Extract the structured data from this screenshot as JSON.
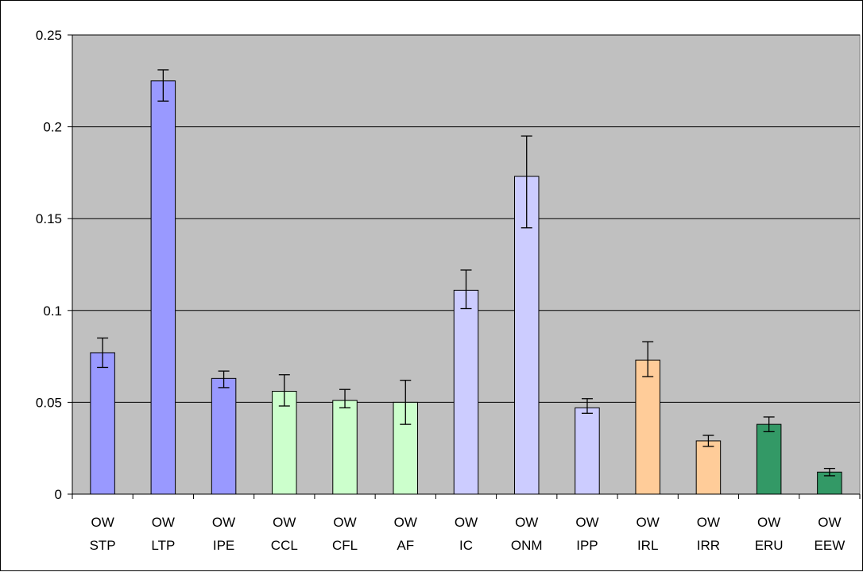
{
  "chart_data": {
    "type": "bar",
    "title": "",
    "xlabel": "",
    "ylabel": "",
    "ylim": [
      0,
      0.25
    ],
    "yticks": [
      0,
      0.05,
      0.1,
      0.15,
      0.2,
      0.25
    ],
    "ytick_labels": [
      "0",
      "0.05",
      "0.1",
      "0.15",
      "0.2",
      "0.25"
    ],
    "grid": true,
    "plot_background": "#c0c0c0",
    "categories": [
      [
        "OW",
        "STP"
      ],
      [
        "OW",
        "LTP"
      ],
      [
        "OW",
        "IPE"
      ],
      [
        "OW",
        "CCL"
      ],
      [
        "OW",
        "CFL"
      ],
      [
        "OW",
        "AF"
      ],
      [
        "OW",
        "IC"
      ],
      [
        "OW",
        "ONM"
      ],
      [
        "OW",
        "IPP"
      ],
      [
        "OW",
        "IRL"
      ],
      [
        "OW",
        "IRR"
      ],
      [
        "OW",
        "ERU"
      ],
      [
        "OW",
        "EEW"
      ]
    ],
    "values": [
      0.077,
      0.225,
      0.063,
      0.056,
      0.051,
      0.05,
      0.111,
      0.173,
      0.047,
      0.073,
      0.029,
      0.038,
      0.012
    ],
    "error_low": [
      0.069,
      0.214,
      0.058,
      0.048,
      0.047,
      0.038,
      0.101,
      0.145,
      0.044,
      0.064,
      0.026,
      0.034,
      0.01
    ],
    "error_high": [
      0.085,
      0.231,
      0.067,
      0.065,
      0.057,
      0.062,
      0.122,
      0.195,
      0.052,
      0.083,
      0.032,
      0.042,
      0.014
    ],
    "colors": [
      "#9999ff",
      "#9999ff",
      "#9999ff",
      "#ccffcc",
      "#ccffcc",
      "#ccffcc",
      "#ccccff",
      "#ccccff",
      "#ccccff",
      "#ffcc99",
      "#ffcc99",
      "#339966",
      "#339966"
    ]
  }
}
